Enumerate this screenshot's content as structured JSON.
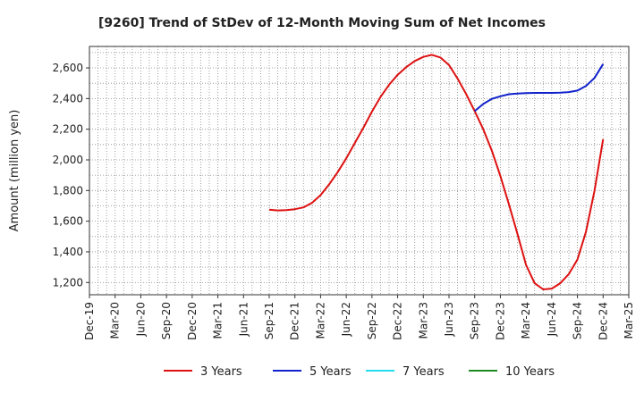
{
  "chart_data": {
    "type": "line",
    "title": "[9260]  Trend of StDev of 12-Month Moving Sum of Net Incomes",
    "xlabel": "",
    "ylabel": "Amount (million yen)",
    "x_ticks": [
      "Dec-19",
      "Mar-20",
      "Jun-20",
      "Sep-20",
      "Dec-20",
      "Mar-21",
      "Jun-21",
      "Sep-21",
      "Dec-21",
      "Mar-22",
      "Jun-22",
      "Sep-22",
      "Dec-22",
      "Mar-23",
      "Jun-23",
      "Sep-23",
      "Dec-23",
      "Mar-24",
      "Jun-24",
      "Sep-24",
      "Dec-24",
      "Mar-25"
    ],
    "y_ticks": [
      1200,
      1400,
      1600,
      1800,
      2000,
      2200,
      2400,
      2600
    ],
    "ylim": [
      1120,
      2740
    ],
    "grid": true,
    "legend_position": "bottom",
    "series": [
      {
        "name": "3 Years",
        "color": "#dd1111",
        "x": [
          "2021-09",
          "2021-10",
          "2021-11",
          "2021-12",
          "2022-01",
          "2022-02",
          "2022-03",
          "2022-04",
          "2022-05",
          "2022-06",
          "2022-07",
          "2022-08",
          "2022-09",
          "2022-10",
          "2022-11",
          "2022-12",
          "2023-01",
          "2023-02",
          "2023-03",
          "2023-04",
          "2023-05",
          "2023-06",
          "2023-07",
          "2023-08",
          "2023-09",
          "2023-10",
          "2023-11",
          "2023-12",
          "2024-01",
          "2024-02",
          "2024-03",
          "2024-04",
          "2024-05",
          "2024-06",
          "2024-07",
          "2024-08",
          "2024-09",
          "2024-10",
          "2024-11",
          "2024-12"
        ],
        "values": [
          1675,
          1670,
          1672,
          1678,
          1690,
          1720,
          1770,
          1840,
          1920,
          2010,
          2110,
          2210,
          2315,
          2410,
          2490,
          2555,
          2605,
          2645,
          2672,
          2685,
          2668,
          2618,
          2530,
          2430,
          2318,
          2200,
          2060,
          1895,
          1710,
          1515,
          1315,
          1195,
          1155,
          1160,
          1195,
          1255,
          1350,
          1530,
          1800,
          2135
        ]
      },
      {
        "name": "5 Years",
        "color": "#1122cc",
        "x": [
          "2023-09",
          "2023-10",
          "2023-11",
          "2023-12",
          "2024-01",
          "2024-02",
          "2024-03",
          "2024-04",
          "2024-05",
          "2024-06",
          "2024-07",
          "2024-08",
          "2024-09",
          "2024-10",
          "2024-11",
          "2024-12"
        ],
        "values": [
          2318,
          2365,
          2398,
          2415,
          2428,
          2433,
          2436,
          2437,
          2437,
          2437,
          2438,
          2442,
          2452,
          2482,
          2535,
          2625
        ]
      },
      {
        "name": "7 Years",
        "color": "#22ddee",
        "x": [],
        "values": []
      },
      {
        "name": "10 Years",
        "color": "#1f8a1f",
        "x": [],
        "values": []
      }
    ]
  }
}
